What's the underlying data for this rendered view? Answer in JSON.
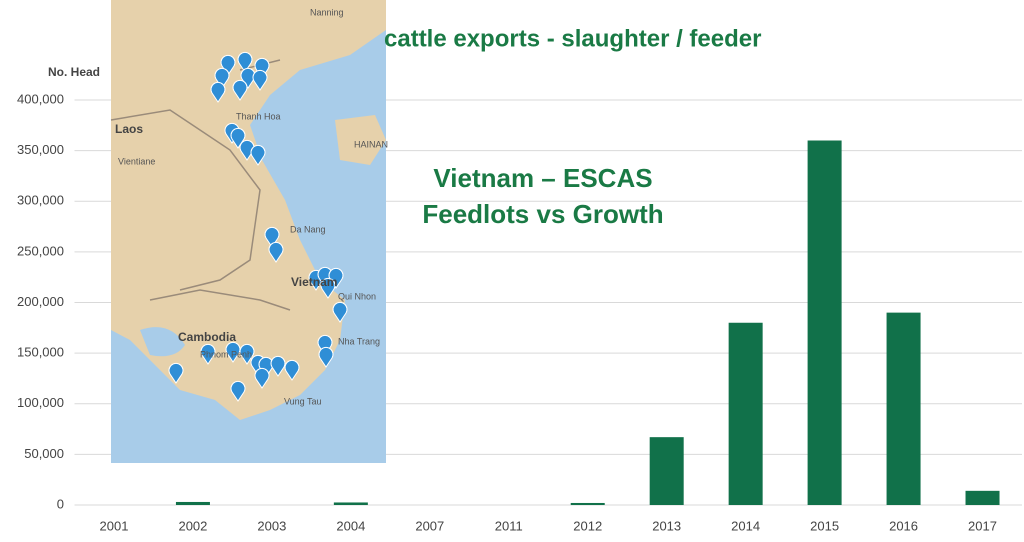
{
  "chart_data": {
    "type": "bar",
    "title": "cattle exports - slaughter / feeder",
    "y_label": "No. Head",
    "annotation": [
      "Vietnam – ESCAS",
      "Feedlots vs Growth"
    ],
    "categories": [
      "2001",
      "2002",
      "2003",
      "2004",
      "2007",
      "2011",
      "2012",
      "2013",
      "2014",
      "2015",
      "2016",
      "2017"
    ],
    "values": [
      0,
      3000,
      0,
      2500,
      0,
      0,
      2000,
      67000,
      180000,
      360000,
      190000,
      14000
    ],
    "color": "#11714a",
    "ylim": [
      0,
      400000
    ],
    "yticks": [
      0,
      {
        "value": 50000,
        "label": "50,000"
      },
      {
        "value": 100000,
        "label": "100,000"
      },
      {
        "value": 150000,
        "label": "150,000"
      },
      {
        "value": 200000,
        "label": "200,000"
      },
      {
        "value": 250000,
        "label": "250,000"
      },
      {
        "value": 300000,
        "label": "300,000"
      },
      {
        "value": 350000,
        "label": "350,000"
      },
      {
        "value": 400000,
        "label": "400,000"
      }
    ],
    "grid": true
  },
  "map": {
    "labels": [
      "Laos",
      "Cambodia",
      "Vietnam",
      "HAINAN",
      "Nanning",
      "Thanh Hoa",
      "Vientiane",
      "Da Nang",
      "Qui Nhon",
      "Nha Trang",
      "Phnom Penh",
      "Vung Tau"
    ]
  }
}
